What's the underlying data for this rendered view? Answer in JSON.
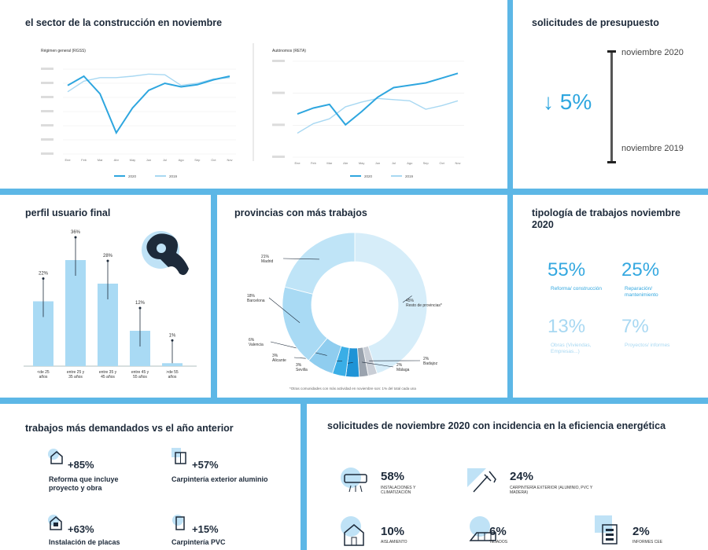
{
  "construction": {
    "title": "el sector de la construcción en noviembre",
    "chart1_label": "Régimen general (RGSS)",
    "chart2_label": "Autónomos (RETA)",
    "legend_2020": "2020",
    "legend_2019": "2019"
  },
  "budget": {
    "title": "solicitudes de presupuesto",
    "top_label": "noviembre 2020",
    "bottom_label": "noviembre 2019",
    "change": "↓ 5%"
  },
  "profile": {
    "title": "perfil usuario final"
  },
  "provinces": {
    "title": "provincias con más trabajos",
    "footnote": "*Otras comunidades con más actividad en noviembre son: 1% del total cada una"
  },
  "types": {
    "title": "tipología de trabajos noviembre 2020",
    "items": [
      {
        "pct": "55%",
        "label": "Reforma/ construcción"
      },
      {
        "pct": "25%",
        "label": "Reparación/ mantenimiento"
      },
      {
        "pct": "13%",
        "label": "Obras (Viviendas, Empresas...)"
      },
      {
        "pct": "7%",
        "label": "Proyectos/ informes"
      }
    ]
  },
  "demand": {
    "title": "trabajos más demandados vs el año anterior",
    "items": [
      {
        "pct": "+85%",
        "label": "Reforma que incluye proyecto y obra",
        "icon": "house-icon"
      },
      {
        "pct": "+57%",
        "label": "Carpintería exterior aluminio",
        "icon": "window-icon"
      },
      {
        "pct": "+63%",
        "label": "Instalación de placas",
        "icon": "solar-panel-icon"
      },
      {
        "pct": "+15%",
        "label": "Carpintería PVC",
        "icon": "door-icon"
      }
    ]
  },
  "efficiency": {
    "title": "solicitudes de noviembre 2020 con incidencia en la eficiencia energética",
    "items": [
      {
        "pct": "58%",
        "label": "Instalaciones y climatización",
        "icon": "air-conditioner-icon"
      },
      {
        "pct": "24%",
        "label": "Carpintería exterior (aluminio, PVC y madera)",
        "icon": "window-tools-icon"
      },
      {
        "pct": "10%",
        "label": "Aislamiento",
        "icon": "house-outline-icon"
      },
      {
        "pct": "6%",
        "label": "Tejados",
        "icon": "roof-icon"
      },
      {
        "pct": "2%",
        "label": "Informes CEE",
        "icon": "certificate-icon"
      }
    ]
  },
  "chart_data": [
    {
      "type": "line",
      "title": "Régimen general (RGSS)",
      "categories": [
        "Ene",
        "Feb",
        "Mar",
        "Abr",
        "May",
        "Jun",
        "Jul",
        "Ago",
        "Sep",
        "Oct",
        "Nov"
      ],
      "series": [
        {
          "name": "2020",
          "values": [
            857,
            870,
            845,
            790,
            825,
            850,
            860,
            855,
            858,
            865,
            870
          ],
          "color": "#2ea6df"
        },
        {
          "name": "2019",
          "values": [
            848,
            863,
            868,
            868,
            870,
            873,
            872,
            857,
            860,
            866,
            868
          ],
          "color": "#a8d8f2"
        }
      ],
      "ylim": [
        760,
        880
      ]
    },
    {
      "type": "line",
      "title": "Autónomos (RETA)",
      "categories": [
        "Ene",
        "Feb",
        "Mar",
        "Abr",
        "May",
        "Jun",
        "Jul",
        "Ago",
        "Sep",
        "Oct",
        "Nov"
      ],
      "series": [
        {
          "name": "2020",
          "values": [
            56,
            61,
            64,
            47,
            58,
            70,
            78,
            80,
            82,
            86,
            90
          ],
          "color": "#2ea6df"
        },
        {
          "name": "2019",
          "values": [
            40,
            48,
            52,
            62,
            66,
            69,
            68,
            67,
            60,
            63,
            67
          ],
          "color": "#a8d8f2"
        }
      ],
      "ylim": [
        20,
        100
      ]
    },
    {
      "type": "bar",
      "title": "perfil usuario final",
      "categories": [
        "<de 25 años",
        "entre 25 y 35 años",
        "entre 35 y 45 años",
        "entre 45 y 55 años",
        ">de 55 años"
      ],
      "values": [
        22,
        36,
        28,
        12,
        1
      ],
      "labels": [
        "22%",
        "36%",
        "28%",
        "12%",
        "1%"
      ],
      "ylim": [
        0,
        40
      ]
    },
    {
      "type": "pie",
      "title": "provincias con más trabajos",
      "slices": [
        {
          "label": "Resto de provincias*",
          "value": 45,
          "text": "45%",
          "color": "#d6edf9"
        },
        {
          "label": "Badajoz",
          "value": 2,
          "text": "2%",
          "color": "#c9ced6"
        },
        {
          "label": "Málaga",
          "value": 2,
          "text": "2%",
          "color": "#9aa3ae"
        },
        {
          "label": "Sevilla",
          "value": 3,
          "text": "3%",
          "color": "#1f93d6"
        },
        {
          "label": "Alicante",
          "value": 3,
          "text": "3%",
          "color": "#3aaee6"
        },
        {
          "label": "Valencia",
          "value": 6,
          "text": "6%",
          "color": "#8fcdef"
        },
        {
          "label": "Barcelona",
          "value": 18,
          "text": "18%",
          "color": "#a9daf4"
        },
        {
          "label": "Madrid",
          "value": 21,
          "text": "21%",
          "color": "#bfe4f7"
        }
      ]
    }
  ]
}
